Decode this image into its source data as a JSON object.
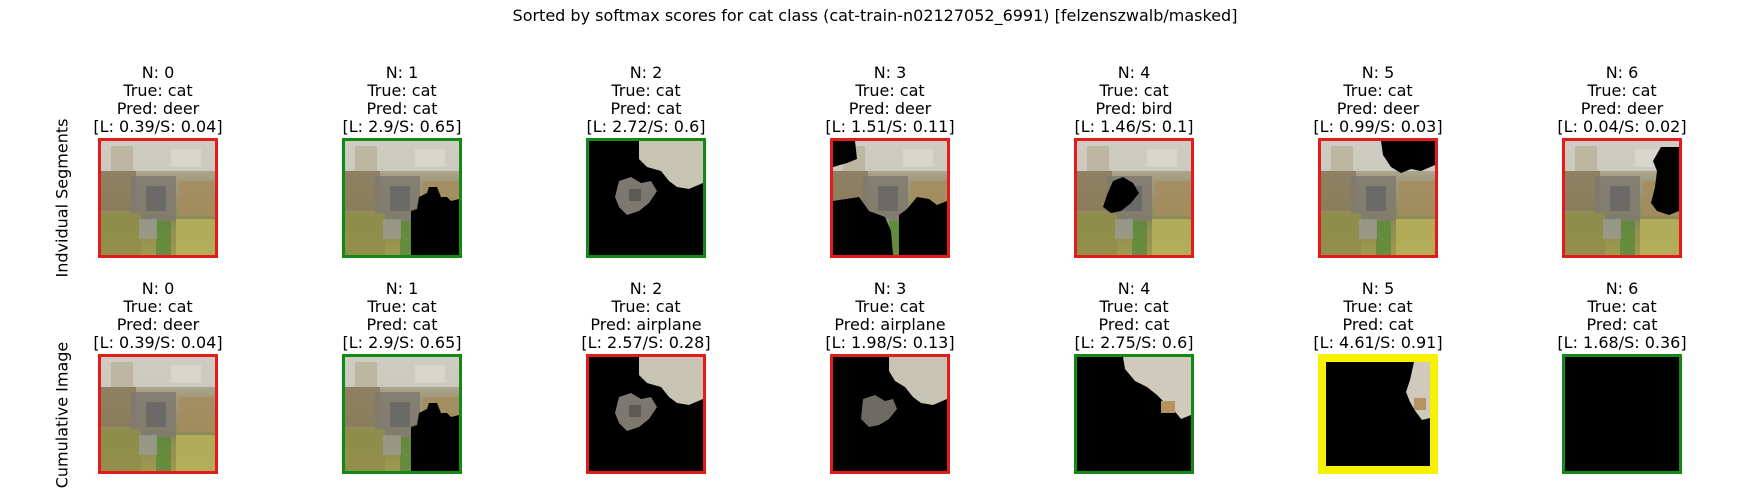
{
  "title": "Sorted by softmax scores for cat class (cat-train-n02127052_6991) [felzenszwalb/masked]",
  "rows": [
    {
      "label": "Indvidual Segments",
      "panels": [
        {
          "n": "N: 0",
          "true": "True: cat",
          "pred": "Pred: deer",
          "scores": "[L: 0.39/S: 0.04]",
          "border_color": "#e21b1b"
        },
        {
          "n": "N: 1",
          "true": "True: cat",
          "pred": "Pred: cat",
          "scores": "[L: 2.9/S: 0.65]",
          "border_color": "#138a13"
        },
        {
          "n": "N: 2",
          "true": "True: cat",
          "pred": "Pred: cat",
          "scores": "[L: 2.72/S: 0.6]",
          "border_color": "#138a13"
        },
        {
          "n": "N: 3",
          "true": "True: cat",
          "pred": "Pred: deer",
          "scores": "[L: 1.51/S: 0.11]",
          "border_color": "#e21b1b"
        },
        {
          "n": "N: 4",
          "true": "True: cat",
          "pred": "Pred: bird",
          "scores": "[L: 1.46/S: 0.1]",
          "border_color": "#e21b1b"
        },
        {
          "n": "N: 5",
          "true": "True: cat",
          "pred": "Pred: deer",
          "scores": "[L: 0.99/S: 0.03]",
          "border_color": "#e21b1b"
        },
        {
          "n": "N: 6",
          "true": "True: cat",
          "pred": "Pred: deer",
          "scores": "[L: 0.04/S: 0.02]",
          "border_color": "#e21b1b"
        }
      ]
    },
    {
      "label": "Cumulative Image",
      "panels": [
        {
          "n": "N: 0",
          "true": "True: cat",
          "pred": "Pred: deer",
          "scores": "[L: 0.39/S: 0.04]",
          "border_color": "#e21b1b"
        },
        {
          "n": "N: 1",
          "true": "True: cat",
          "pred": "Pred: cat",
          "scores": "[L: 2.9/S: 0.65]",
          "border_color": "#138a13"
        },
        {
          "n": "N: 2",
          "true": "True: cat",
          "pred": "Pred: airplane",
          "scores": "[L: 2.57/S: 0.28]",
          "border_color": "#e21b1b"
        },
        {
          "n": "N: 3",
          "true": "True: cat",
          "pred": "Pred: airplane",
          "scores": "[L: 1.98/S: 0.13]",
          "border_color": "#e21b1b"
        },
        {
          "n": "N: 4",
          "true": "True: cat",
          "pred": "Pred: cat",
          "scores": "[L: 2.75/S: 0.6]",
          "border_color": "#138a13"
        },
        {
          "n": "N: 5",
          "true": "True: cat",
          "pred": "Pred: cat",
          "scores": "[L: 4.61/S: 0.91]",
          "border_color": "#f7f000"
        },
        {
          "n": "N: 6",
          "true": "True: cat",
          "pred": "Pred: cat",
          "scores": "[L: 1.68/S: 0.36]",
          "border_color": "#138a13"
        }
      ]
    }
  ]
}
